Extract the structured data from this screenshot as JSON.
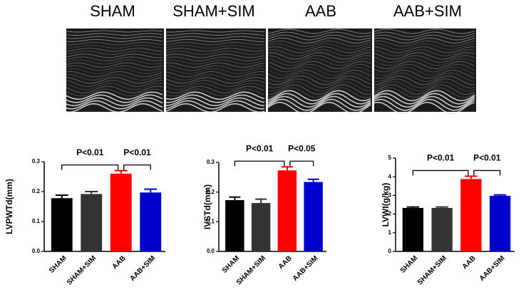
{
  "images": {
    "labels": [
      "SHAM",
      "SHAM+SIM",
      "AAB",
      "AAB+SIM"
    ]
  },
  "chart_data": [
    {
      "type": "bar",
      "ylabel": "LVPWTd(mm)",
      "categories": [
        "SHAM",
        "SHAM+SIM",
        "AAB",
        "AAB+SIM"
      ],
      "values": [
        0.178,
        0.192,
        0.26,
        0.197
      ],
      "errors": [
        0.01,
        0.008,
        0.01,
        0.011
      ],
      "colors": [
        "#000000",
        "#333333",
        "#ff0000",
        "#0000cc"
      ],
      "ylim": [
        0,
        0.3
      ],
      "yticks": [
        {
          "value": 0,
          "label": "0.0"
        },
        0.1,
        0.2,
        0.3
      ],
      "annotations": [
        "P<0.01",
        "P<0.01"
      ]
    },
    {
      "type": "bar",
      "ylabel": "IVSTd(mm)",
      "categories": [
        "SHAM",
        "SHAM+SIM",
        "AAB",
        "AAB+SIM"
      ],
      "values": [
        0.173,
        0.163,
        0.273,
        0.234
      ],
      "errors": [
        0.01,
        0.013,
        0.012,
        0.009
      ],
      "colors": [
        "#000000",
        "#333333",
        "#ff0000",
        "#0000cc"
      ],
      "ylim": [
        0,
        0.3
      ],
      "yticks": [
        {
          "value": 0,
          "label": "0.0"
        },
        0.1,
        0.2,
        0.3
      ],
      "annotations": [
        "P<0.01",
        "P<0.05"
      ]
    },
    {
      "type": "bar",
      "ylabel": "LVWI(g/kg)",
      "categories": [
        "SHAM",
        "SHAM+SIM",
        "AAB",
        "AAB+SIM"
      ],
      "values": [
        2.33,
        2.33,
        3.88,
        2.98
      ],
      "errors": [
        0.05,
        0.05,
        0.15,
        0.05
      ],
      "colors": [
        "#000000",
        "#333333",
        "#ff0000",
        "#0000cc"
      ],
      "ylim": [
        0,
        5
      ],
      "yticks": [
        0,
        1,
        2,
        3,
        4,
        5
      ],
      "annotations": [
        "P<0.01",
        "P<0.01"
      ]
    }
  ]
}
